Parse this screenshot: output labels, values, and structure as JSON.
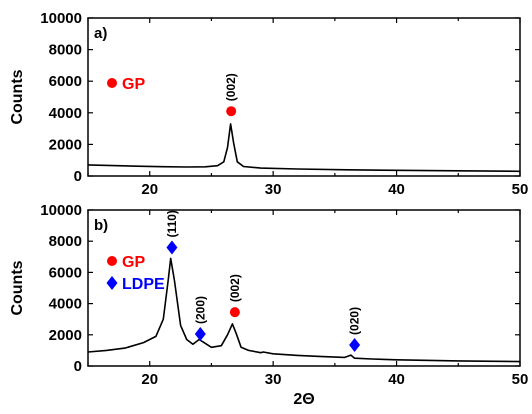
{
  "chart_data": [
    {
      "type": "line",
      "panel_label": "a)",
      "xlim": [
        15,
        50
      ],
      "ylim": [
        0,
        10000
      ],
      "x_ticks": [
        20,
        30,
        40,
        50
      ],
      "y_ticks": [
        0,
        2000,
        4000,
        6000,
        8000,
        10000
      ],
      "xlabel": "",
      "ylabel": "Counts",
      "grid": false,
      "series": [
        {
          "color": "#000000",
          "points": [
            [
              15,
              700
            ],
            [
              17,
              660
            ],
            [
              19,
              620
            ],
            [
              21,
              590
            ],
            [
              23,
              570
            ],
            [
              24.5,
              580
            ],
            [
              25.5,
              650
            ],
            [
              26,
              900
            ],
            [
              26.3,
              1800
            ],
            [
              26.55,
              3300
            ],
            [
              26.8,
              2100
            ],
            [
              27.1,
              900
            ],
            [
              27.6,
              600
            ],
            [
              29,
              500
            ],
            [
              32,
              440
            ],
            [
              36,
              390
            ],
            [
              40,
              360
            ],
            [
              45,
              330
            ],
            [
              50,
              300
            ]
          ]
        }
      ],
      "markers": [
        {
          "x": 26.6,
          "y": 4100,
          "shape": "circle",
          "color": "#ff0000",
          "label": "(002)"
        }
      ],
      "legend": {
        "placement": "left",
        "items": [
          {
            "label": "GP",
            "shape": "circle",
            "color": "#ff0000"
          }
        ]
      }
    },
    {
      "type": "line",
      "panel_label": "b)",
      "xlim": [
        15,
        50
      ],
      "ylim": [
        0,
        10000
      ],
      "x_ticks": [
        20,
        30,
        40,
        50
      ],
      "y_ticks": [
        0,
        2000,
        4000,
        6000,
        8000,
        10000
      ],
      "xlabel": "2Θ",
      "ylabel": "Counts",
      "grid": false,
      "series": [
        {
          "color": "#000000",
          "points": [
            [
              15,
              900
            ],
            [
              16.5,
              1000
            ],
            [
              18,
              1150
            ],
            [
              19.5,
              1500
            ],
            [
              20.5,
              1900
            ],
            [
              21.1,
              3000
            ],
            [
              21.5,
              5500
            ],
            [
              21.7,
              6900
            ],
            [
              22,
              5500
            ],
            [
              22.5,
              2600
            ],
            [
              23,
              1700
            ],
            [
              23.5,
              1400
            ],
            [
              24,
              1700
            ],
            [
              24.4,
              1500
            ],
            [
              25,
              1200
            ],
            [
              25.8,
              1300
            ],
            [
              26.3,
              2000
            ],
            [
              26.7,
              2700
            ],
            [
              27,
              2100
            ],
            [
              27.4,
              1200
            ],
            [
              28,
              1000
            ],
            [
              29,
              850
            ],
            [
              29.2,
              900
            ],
            [
              30,
              780
            ],
            [
              32,
              680
            ],
            [
              34,
              600
            ],
            [
              35.8,
              550
            ],
            [
              36.3,
              700
            ],
            [
              36.6,
              500
            ],
            [
              38,
              450
            ],
            [
              40,
              400
            ],
            [
              45,
              330
            ],
            [
              50,
              280
            ]
          ]
        }
      ],
      "markers": [
        {
          "x": 21.8,
          "y": 7600,
          "shape": "diamond",
          "color": "#0000ff",
          "label": "(110)"
        },
        {
          "x": 24.1,
          "y": 2050,
          "shape": "diamond",
          "color": "#0000ff",
          "label": "(200)"
        },
        {
          "x": 26.9,
          "y": 3450,
          "shape": "circle",
          "color": "#ff0000",
          "label": "(002)"
        },
        {
          "x": 36.6,
          "y": 1350,
          "shape": "diamond",
          "color": "#0000ff",
          "label": "(020)"
        }
      ],
      "legend": {
        "placement": "upper-left",
        "items": [
          {
            "label": "GP",
            "shape": "circle",
            "color": "#ff0000"
          },
          {
            "label": "LDPE",
            "shape": "diamond",
            "color": "#0000ff"
          }
        ]
      }
    }
  ]
}
